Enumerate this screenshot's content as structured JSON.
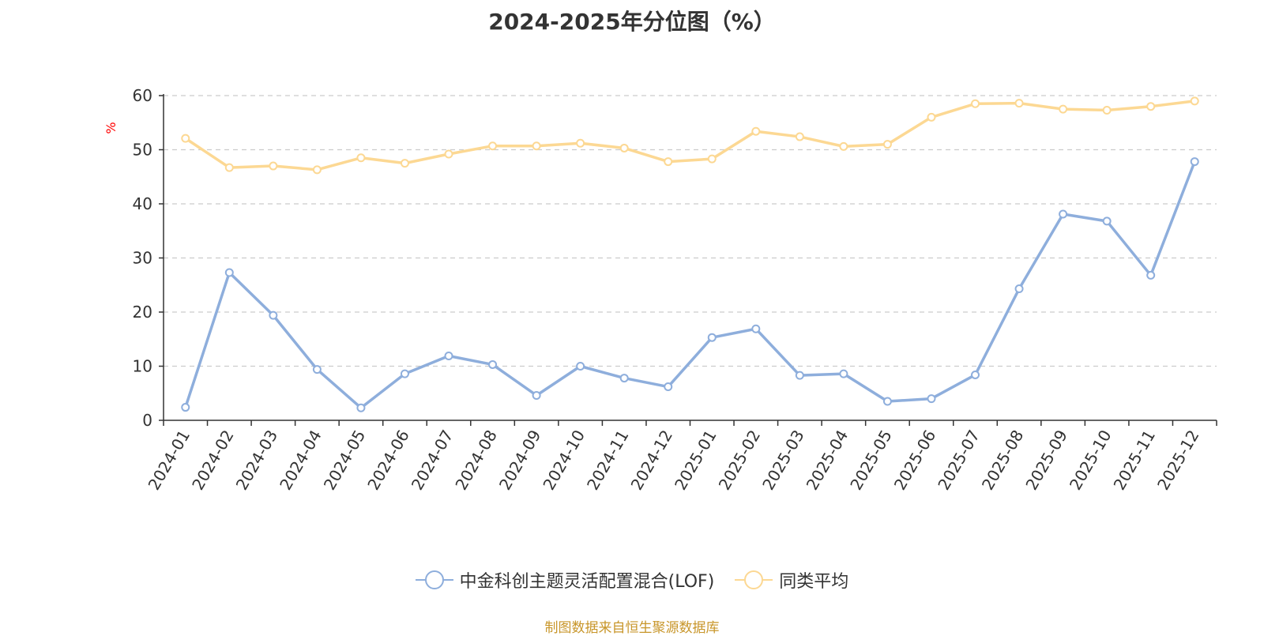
{
  "chart_data": {
    "type": "line",
    "title": "2024-2025年分位图（%）",
    "ylabel": "%",
    "xlabel": "",
    "ylim": [
      0,
      60
    ],
    "yticks": [
      0,
      10,
      20,
      30,
      40,
      50,
      60
    ],
    "categories": [
      "2024-01",
      "2024-02",
      "2024-03",
      "2024-04",
      "2024-05",
      "2024-06",
      "2024-07",
      "2024-08",
      "2024-09",
      "2024-10",
      "2024-11",
      "2024-12",
      "2025-01",
      "2025-02",
      "2025-03",
      "2025-04",
      "2025-05",
      "2025-06",
      "2025-07",
      "2025-08",
      "2025-09",
      "2025-10",
      "2025-11",
      "2025-12"
    ],
    "series": [
      {
        "name": "中金科创主题灵活配置混合(LOF)",
        "color": "#8eaedc",
        "values": [
          2.4,
          27.3,
          19.4,
          9.4,
          2.3,
          8.6,
          11.9,
          10.3,
          4.6,
          10.0,
          7.8,
          6.2,
          15.3,
          16.9,
          8.3,
          8.6,
          3.5,
          4.0,
          8.4,
          24.3,
          38.1,
          36.8,
          26.8,
          47.8
        ]
      },
      {
        "name": "同类平均",
        "color": "#fcd893",
        "values": [
          52.1,
          46.7,
          47.0,
          46.3,
          48.5,
          47.5,
          49.2,
          50.7,
          50.7,
          51.2,
          50.3,
          47.8,
          48.3,
          53.4,
          52.4,
          50.6,
          51.0,
          56.0,
          58.5,
          58.6,
          57.5,
          57.3,
          58.0,
          59.0
        ]
      }
    ],
    "grid": true,
    "legend_position": "bottom-center"
  },
  "source_text": "制图数据来自恒生聚源数据库"
}
